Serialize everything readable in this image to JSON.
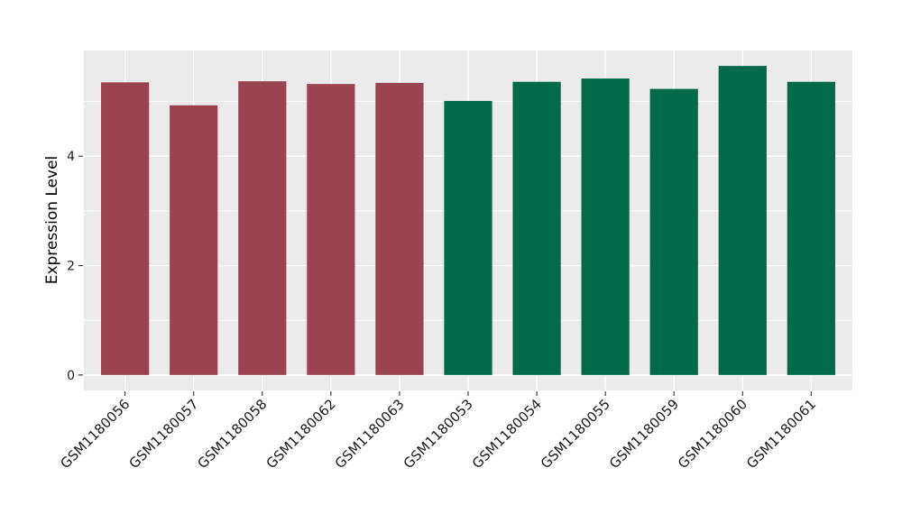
{
  "chart_data": {
    "type": "bar",
    "title": "",
    "xlabel": "",
    "ylabel": "Expression Level",
    "categories": [
      "GSM1180056",
      "GSM1180057",
      "GSM1180058",
      "GSM1180062",
      "GSM1180063",
      "GSM1180053",
      "GSM1180054",
      "GSM1180055",
      "GSM1180059",
      "GSM1180060",
      "GSM1180061"
    ],
    "values": [
      5.35,
      4.93,
      5.37,
      5.32,
      5.34,
      5.01,
      5.36,
      5.42,
      5.23,
      5.65,
      5.36
    ],
    "bar_colors": [
      "#9A4452",
      "#9A4452",
      "#9A4452",
      "#9A4452",
      "#9A4452",
      "#016A4B",
      "#016A4B",
      "#016A4B",
      "#016A4B",
      "#016A4B",
      "#016A4B"
    ],
    "group_colors": {
      "left_group": "#9A4452",
      "right_group": "#016A4B"
    },
    "ylim": [
      0,
      5.65
    ],
    "yticks": [
      0,
      2,
      4
    ],
    "yticks_minor": [
      1,
      3,
      5
    ],
    "grid": true,
    "legend": false,
    "x_tick_rotation": -45,
    "panel_bg": "#EBEBEB",
    "grid_color": "#FFFFFF",
    "tick_color": "#333333",
    "text_color": "#1A1A1A",
    "bar_width_frac": 0.7
  }
}
